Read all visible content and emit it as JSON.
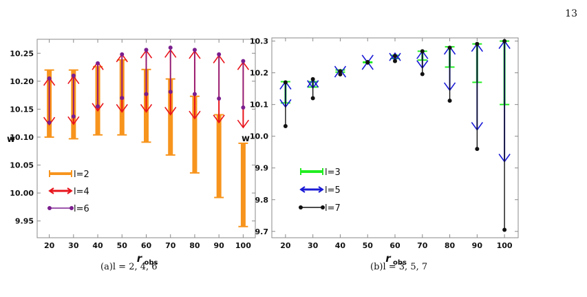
{
  "page_number": "13",
  "captions": {
    "a": "(a)l = 2, 4, 6",
    "b": "(b)l = 3, 5, 7"
  },
  "chart_data": [
    {
      "type": "errorbar",
      "id": "a",
      "xlabel_main": "r",
      "xlabel_sub": "obs",
      "ylabel": "w",
      "xlim": [
        15,
        105
      ],
      "ylim": [
        9.92,
        10.275
      ],
      "xticks": [
        20,
        30,
        40,
        50,
        60,
        70,
        80,
        90,
        100
      ],
      "yticks": [
        9.95,
        10.0,
        10.05,
        10.1,
        10.15,
        10.2,
        10.25
      ],
      "ytick_labels": [
        "9.95",
        "10.00",
        "10.05",
        "10.10",
        "10.15",
        "10.20",
        "10.25"
      ],
      "series": [
        {
          "name": "l=2",
          "style": "bar",
          "color": "#f7941d",
          "points": [
            {
              "x": 20,
              "lo": 10.1,
              "hi": 10.22
            },
            {
              "x": 30,
              "lo": 10.097,
              "hi": 10.22
            },
            {
              "x": 40,
              "lo": 10.104,
              "hi": 10.226
            },
            {
              "x": 50,
              "lo": 10.104,
              "hi": 10.238
            },
            {
              "x": 60,
              "lo": 10.091,
              "hi": 10.221
            },
            {
              "x": 70,
              "lo": 10.068,
              "hi": 10.204
            },
            {
              "x": 80,
              "lo": 10.036,
              "hi": 10.173
            },
            {
              "x": 90,
              "lo": 9.992,
              "hi": 10.14
            },
            {
              "x": 100,
              "lo": 9.94,
              "hi": 10.089
            }
          ]
        },
        {
          "name": "l=4",
          "style": "arrow",
          "color": "#e8141c",
          "points": [
            {
              "x": 20,
              "lo": 10.122,
              "hi": 10.206
            },
            {
              "x": 30,
              "lo": 10.123,
              "hi": 10.209
            },
            {
              "x": 40,
              "lo": 10.147,
              "hi": 10.234
            },
            {
              "x": 50,
              "lo": 10.145,
              "hi": 10.248
            },
            {
              "x": 60,
              "lo": 10.145,
              "hi": 10.255
            },
            {
              "x": 70,
              "lo": 10.14,
              "hi": 10.256
            },
            {
              "x": 80,
              "lo": 10.133,
              "hi": 10.254
            },
            {
              "x": 90,
              "lo": 10.126,
              "hi": 10.246
            },
            {
              "x": 100,
              "lo": 10.117,
              "hi": 10.234
            }
          ]
        },
        {
          "name": "l=6",
          "style": "dot",
          "color": "#7b1e8e",
          "points": [
            {
              "x": 20,
              "lo": 10.126,
              "hi": 10.205
            },
            {
              "x": 30,
              "lo": 10.137,
              "hi": 10.21
            },
            {
              "x": 40,
              "lo": 10.155,
              "hi": 10.232
            },
            {
              "x": 50,
              "lo": 10.17,
              "hi": 10.248
            },
            {
              "x": 60,
              "lo": 10.177,
              "hi": 10.256
            },
            {
              "x": 70,
              "lo": 10.181,
              "hi": 10.26
            },
            {
              "x": 80,
              "lo": 10.177,
              "hi": 10.256
            },
            {
              "x": 90,
              "lo": 10.169,
              "hi": 10.248
            },
            {
              "x": 100,
              "lo": 10.153,
              "hi": 10.236
            }
          ]
        }
      ],
      "legend": [
        "l=2",
        "l=4",
        "l=6"
      ],
      "legend_position": "bottom-left"
    },
    {
      "type": "errorbar",
      "id": "b",
      "xlabel_main": "r",
      "xlabel_sub": "obs",
      "ylabel": "w",
      "xlim": [
        15,
        105
      ],
      "ylim": [
        9.68,
        10.31
      ],
      "xticks": [
        20,
        30,
        40,
        50,
        60,
        70,
        80,
        90,
        100
      ],
      "yticks": [
        9.7,
        9.8,
        9.9,
        10.0,
        10.1,
        10.2,
        10.3
      ],
      "ytick_labels": [
        "9.7",
        "9.8",
        "9.9",
        "10.0",
        "10.1",
        "10.2",
        "10.3"
      ],
      "series": [
        {
          "name": "l=3",
          "style": "bar",
          "color": "#22ee22",
          "points": [
            {
              "x": 20,
              "lo": 10.105,
              "hi": 10.172
            },
            {
              "x": 30,
              "lo": 10.155,
              "hi": 10.172
            },
            {
              "x": 40,
              "lo": 10.202,
              "hi": 10.209
            },
            {
              "x": 50,
              "lo": 10.232,
              "hi": 10.234
            },
            {
              "x": 60,
              "lo": 10.245,
              "hi": 10.255
            },
            {
              "x": 70,
              "lo": 10.24,
              "hi": 10.268
            },
            {
              "x": 80,
              "lo": 10.218,
              "hi": 10.282
            },
            {
              "x": 90,
              "lo": 10.17,
              "hi": 10.291
            },
            {
              "x": 100,
              "lo": 10.1,
              "hi": 10.3
            }
          ]
        },
        {
          "name": "l=5",
          "style": "arrow",
          "color": "#1a1ad6",
          "points": [
            {
              "x": 20,
              "lo": 10.092,
              "hi": 10.172
            },
            {
              "x": 30,
              "lo": 10.152,
              "hi": 10.178
            },
            {
              "x": 40,
              "lo": 10.197,
              "hi": 10.21
            },
            {
              "x": 50,
              "lo": 10.232,
              "hi": 10.234
            },
            {
              "x": 60,
              "lo": 10.238,
              "hi": 10.262
            },
            {
              "x": 70,
              "lo": 10.215,
              "hi": 10.268
            },
            {
              "x": 80,
              "lo": 10.145,
              "hi": 10.282
            },
            {
              "x": 90,
              "lo": 10.02,
              "hi": 10.291
            },
            {
              "x": 100,
              "lo": 9.92,
              "hi": 10.3
            }
          ]
        },
        {
          "name": "l=7",
          "style": "dot",
          "color": "#111111",
          "points": [
            {
              "x": 20,
              "lo": 10.032,
              "hi": 10.17
            },
            {
              "x": 30,
              "lo": 10.12,
              "hi": 10.18
            },
            {
              "x": 40,
              "lo": 10.195,
              "hi": 10.205
            },
            {
              "x": 50,
              "lo": 10.232,
              "hi": 10.234
            },
            {
              "x": 60,
              "lo": 10.237,
              "hi": 10.253
            },
            {
              "x": 70,
              "lo": 10.196,
              "hi": 10.268
            },
            {
              "x": 80,
              "lo": 10.112,
              "hi": 10.279
            },
            {
              "x": 90,
              "lo": 9.96,
              "hi": 10.291
            },
            {
              "x": 100,
              "lo": 9.705,
              "hi": 10.3
            }
          ]
        }
      ],
      "legend": [
        "l=3",
        "l=5",
        "l=7"
      ],
      "legend_position": "bottom-left"
    }
  ]
}
